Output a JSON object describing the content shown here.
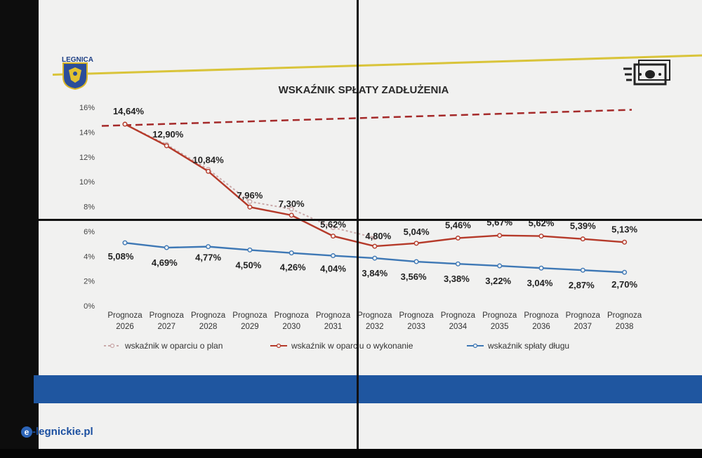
{
  "header": {
    "logo_text": "LEGNICA",
    "logo_icon": "coat-of-arms-icon",
    "money_icon": "money-icon"
  },
  "watermark": {
    "prefix": "e",
    "text": "-legnickie.pl"
  },
  "colors": {
    "plan": "#c9a9a9",
    "wykonanie": "#b53a2a",
    "splata": "#3e78b5",
    "limit": "#a52a2a",
    "band": "#1f56a0",
    "gold": "#d9c43a"
  },
  "chart_data": {
    "type": "line",
    "title": "WSKAŹNIK SPŁATY ZADŁUŻENIA",
    "categories": [
      [
        "Prognoza",
        "2026"
      ],
      [
        "Prognoza",
        "2027"
      ],
      [
        "Prognoza",
        "2028"
      ],
      [
        "Prognoza",
        "2029"
      ],
      [
        "Prognoza",
        "2030"
      ],
      [
        "Prognoza",
        "2031"
      ],
      [
        "Prognoza",
        "2032"
      ],
      [
        "Prognoza",
        "2033"
      ],
      [
        "Prognoza",
        "2034"
      ],
      [
        "Prognoza",
        "2035"
      ],
      [
        "Prognoza",
        "2036"
      ],
      [
        "Prognoza",
        "2037"
      ],
      [
        "Prognoza",
        "2038"
      ]
    ],
    "ylim": [
      0,
      16
    ],
    "yticks": [
      "0%",
      "2%",
      "4%",
      "6%",
      "8%",
      "10%",
      "12%",
      "14%",
      "16%"
    ],
    "series": [
      {
        "name": "wskaźnik w oparciu o plan",
        "key": "plan",
        "style": "dotted",
        "values": [
          14.64,
          13.0,
          11.0,
          8.4,
          7.8,
          6.3,
          5.5,
          null,
          null,
          null,
          null,
          null,
          null
        ],
        "labels": false
      },
      {
        "name": "wskaźnik w oparciu o wykonanie",
        "key": "wykonanie",
        "style": "solid",
        "values": [
          14.64,
          12.9,
          10.84,
          7.96,
          7.3,
          5.62,
          4.8,
          5.04,
          5.46,
          5.67,
          5.62,
          5.39,
          5.13
        ],
        "labels": [
          "14,64%",
          "12,90%",
          "10,84%",
          "7,96%",
          "7,30%",
          "5,62%",
          "4,80%",
          "5,04%",
          "5,46%",
          "5,67%",
          "5,62%",
          "5,39%",
          "5,13%"
        ]
      },
      {
        "name": "wskaźnik spłaty długu",
        "key": "splata",
        "style": "solid",
        "values": [
          5.08,
          4.69,
          4.77,
          4.5,
          4.26,
          4.04,
          3.84,
          3.56,
          3.38,
          3.22,
          3.04,
          2.87,
          2.7
        ],
        "labels": [
          "5,08%",
          "4,69%",
          "4,77%",
          "4,50%",
          "4,26%",
          "4,04%",
          "3,84%",
          "3,56%",
          "3,38%",
          "3,22%",
          "3,04%",
          "2,87%",
          "2,70%"
        ]
      }
    ],
    "limit_line": {
      "style": "dashed",
      "values": [
        14.5,
        15.8
      ]
    },
    "legend_position": "bottom",
    "grid": false
  }
}
